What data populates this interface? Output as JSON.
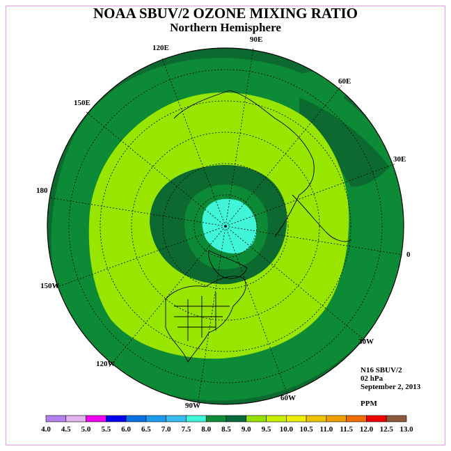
{
  "header": {
    "title": "NOAA SBUV/2 OZONE MIXING RATIO",
    "subtitle": "Northern Hemisphere"
  },
  "longitude_labels": {
    "e90": "90E",
    "e120": "120E",
    "e60": "60E",
    "e150": "150E",
    "e30": "30E",
    "l180": "180",
    "l0": "0",
    "w150": "150W",
    "w30": "30W",
    "w120": "120W",
    "w60": "60W",
    "w90": "90W"
  },
  "info": {
    "instrument": "N16 SBUV/2",
    "level": "02 hPa",
    "date": "September 2, 2013",
    "units": "PPM"
  },
  "colorbar": {
    "ticks": [
      "4.0",
      "4.5",
      "5.0",
      "5.5",
      "6.0",
      "6.5",
      "7.0",
      "7.5",
      "8.0",
      "8.5",
      "9.0",
      "9.5",
      "10.0",
      "10.5",
      "11.0",
      "11.5",
      "12.0",
      "12.5",
      "13.0"
    ],
    "colors": [
      "#b47fee",
      "#e0b4ee",
      "#ee00ee",
      "#0000ee",
      "#0a6fe0",
      "#1c9cee",
      "#36bcee",
      "#40f5d8",
      "#0e8c38",
      "#04683a",
      "#94e000",
      "#c8f000",
      "#eeee00",
      "#eec400",
      "#eea000",
      "#ee6c00",
      "#ee0000",
      "#8b5a3c"
    ]
  },
  "map": {
    "contour_fill": {
      "outer_rim": "#0c6a30",
      "mid_band": "#0d8a36",
      "green_ring": "#98e600",
      "inner_band": "#0c6a30",
      "polar_ring": "#0d8a36",
      "pole_cap": "#40f5d8"
    }
  }
}
